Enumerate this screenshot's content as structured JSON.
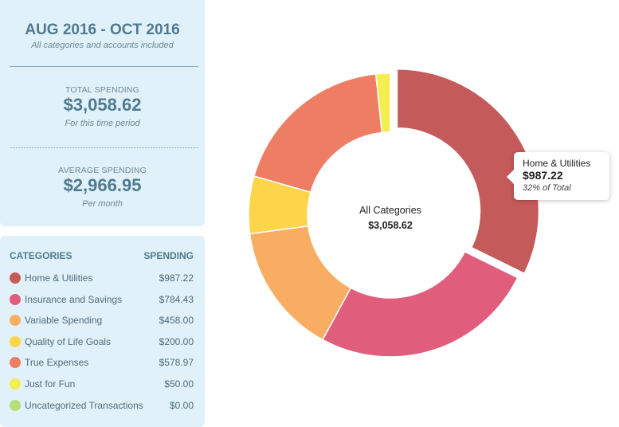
{
  "summary": {
    "period": "AUG 2016 - OCT 2016",
    "scope": "All categories and accounts included",
    "total_label": "TOTAL SPENDING",
    "total_value": "$3,058.62",
    "total_note": "For this time period",
    "average_label": "AVERAGE SPENDING",
    "average_value": "$2,966.95",
    "average_note": "Per month"
  },
  "categories_table": {
    "header_category": "CATEGORIES",
    "header_spending": "SPENDING",
    "rows": [
      {
        "name": "Home & Utilities",
        "amount": "$987.22",
        "color": "#c45a5a"
      },
      {
        "name": "Insurance and Savings",
        "amount": "$784.43",
        "color": "#e05d7b"
      },
      {
        "name": "Variable Spending",
        "amount": "$458.00",
        "color": "#f9ad62"
      },
      {
        "name": "Quality of Life Goals",
        "amount": "$200.00",
        "color": "#fcd54a"
      },
      {
        "name": "True Expenses",
        "amount": "$578.97",
        "color": "#ed7e64"
      },
      {
        "name": "Just for Fun",
        "amount": "$50.00",
        "color": "#f4ee52"
      },
      {
        "name": "Uncategorized Transactions",
        "amount": "$0.00",
        "color": "#b6df7a"
      }
    ]
  },
  "donut_center": {
    "label": "All Categories",
    "value": "$3,058.62"
  },
  "tooltip": {
    "name": "Home & Utilities",
    "value": "$987.22",
    "percent": "32% of Total"
  },
  "chart_data": {
    "type": "pie",
    "donut": true,
    "categories": [
      "Home & Utilities",
      "Insurance and Savings",
      "Variable Spending",
      "Quality of Life Goals",
      "True Expenses",
      "Just for Fun",
      "Uncategorized Transactions"
    ],
    "values": [
      987.22,
      784.43,
      458.0,
      200.0,
      578.97,
      50.0,
      0.0
    ],
    "colors": [
      "#c45a5a",
      "#e05d7b",
      "#f9ad62",
      "#fcd54a",
      "#ed7e64",
      "#f4ee52",
      "#b6df7a"
    ],
    "highlighted": "Home & Utilities"
  }
}
